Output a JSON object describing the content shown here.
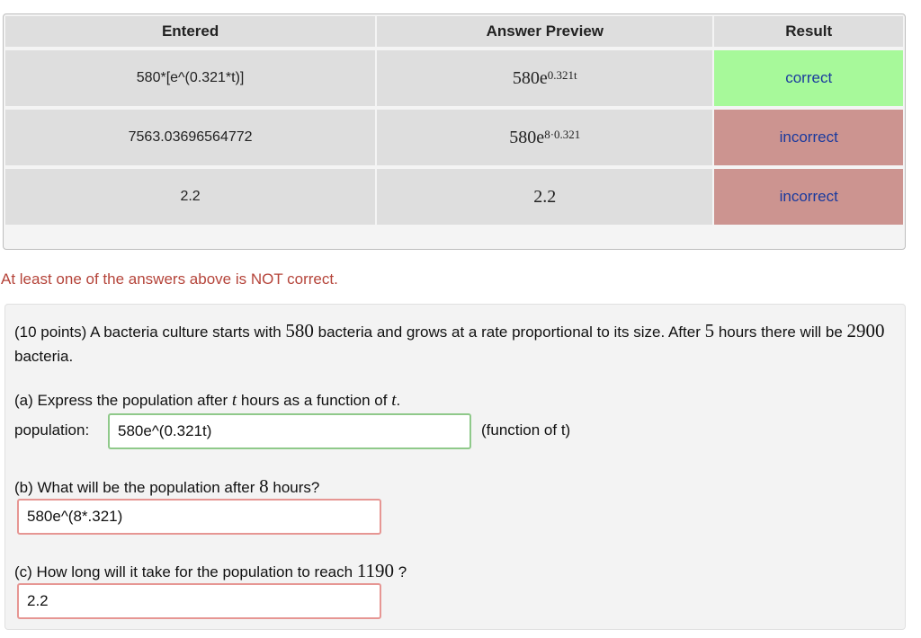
{
  "results_table": {
    "headers": [
      "Entered",
      "Answer Preview",
      "Result"
    ],
    "rows": [
      {
        "entered": "580*[e^(0.321*t)]",
        "preview_base": "580e",
        "preview_exp": "0.321t",
        "result": "correct",
        "status_color": "#a7f99a"
      },
      {
        "entered": "7563.03696564772",
        "preview_base": "580e",
        "preview_exp": "8·0.321",
        "result": "incorrect",
        "status_color": "#cc9490"
      },
      {
        "entered": "2.2",
        "preview_base": "2.2",
        "preview_exp": "",
        "result": "incorrect",
        "status_color": "#cc9490"
      }
    ]
  },
  "message": "At least one of the answers above is NOT correct.",
  "problem": {
    "intro_1": "(10 points) A bacteria culture starts with ",
    "start_count": "580",
    "intro_2": " bacteria and grows at a rate proportional to its size. After ",
    "hours": "5",
    "intro_3": " hours there will be ",
    "final_count": "2900",
    "intro_4": " bacteria.",
    "part_a": {
      "q1": "(a) Express the population after ",
      "var1": "t",
      "q2": " hours as a function of ",
      "var2": "t",
      "q3": ".",
      "label": "population:",
      "value": "580e^(0.321t)",
      "note": "(function of t)"
    },
    "part_b": {
      "q1": "(b) What will be the population after ",
      "num": "8",
      "q2": " hours?",
      "value": "580e^(8*.321)"
    },
    "part_c": {
      "q1": "(c) How long will it take for the population to reach ",
      "num": "1190",
      "q2": " ?",
      "value": "2.2"
    }
  }
}
